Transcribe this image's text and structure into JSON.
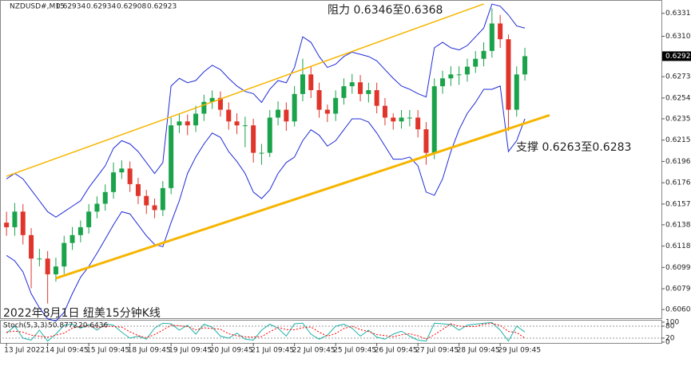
{
  "header": {
    "symbol": "NZDUSD#,M15",
    "ohlc": [
      0.62934,
      0.62934,
      0.62908,
      0.62923
    ]
  },
  "chart_data": [
    {
      "type": "candlestick",
      "annotations": [
        "阻力 0.6346至0.6368",
        "支撑 0.6263至0.6283",
        "2022年8月1日 纽美15分钟K线"
      ],
      "categories": [
        "13 Jul 2022",
        null,
        null,
        null,
        null,
        "14 Jul 09:45",
        null,
        null,
        null,
        null,
        "15 Jul 09:45",
        null,
        null,
        null,
        null,
        "18 Jul 09:45",
        null,
        null,
        null,
        null,
        "19 Jul 09:45",
        null,
        null,
        null,
        null,
        "20 Jul 09:45",
        null,
        null,
        null,
        null,
        "21 Jul 09:45",
        null,
        null,
        null,
        null,
        "22 Jul 09:45",
        null,
        null,
        null,
        null,
        "25 Jul 09:45",
        null,
        null,
        null,
        null,
        "26 Jul 09:45",
        null,
        null,
        null,
        null,
        "27 Jul 09:45",
        null,
        null,
        null,
        null,
        "28 Jul 09:45",
        null,
        null,
        null,
        null,
        "29 Jul 09:45",
        null,
        null,
        null
      ],
      "open": [
        0.614,
        0.61358,
        0.61501,
        0.61286,
        0.61071,
        0.61071,
        0.60927,
        0.60999,
        0.61214,
        0.61286,
        0.61358,
        0.61501,
        0.61573,
        0.6168,
        0.6186,
        0.61895,
        0.61752,
        0.61644,
        0.61558,
        0.61515,
        0.61716,
        0.6229,
        0.62326,
        0.6229,
        0.62397,
        0.62505,
        0.62541,
        0.62433,
        0.62326,
        0.6229,
        0.6229,
        0.62039,
        0.62039,
        0.62361,
        0.62433,
        0.62326,
        0.62577,
        0.62756,
        0.62612,
        0.62433,
        0.62397,
        0.62541,
        0.62648,
        0.62684,
        0.62577,
        0.62612,
        0.62469,
        0.62361,
        0.62326,
        0.62361,
        0.62361,
        0.62254,
        0.62039,
        0.62648,
        0.6272,
        0.62756,
        0.62756,
        0.62827,
        0.62899,
        0.62971,
        0.63222,
        0.63078,
        0.62433,
        0.62756
      ],
      "high": [
        0.615,
        0.6158,
        0.6157,
        0.6135,
        0.6116,
        0.6114,
        0.6108,
        0.6128,
        0.6136,
        0.6142,
        0.6157,
        0.6164,
        0.6175,
        0.6195,
        0.6197,
        0.6196,
        0.6181,
        0.617,
        0.6162,
        0.6178,
        0.6236,
        0.624,
        0.6239,
        0.6247,
        0.6257,
        0.6261,
        0.626,
        0.625,
        0.624,
        0.6237,
        0.6235,
        0.6212,
        0.6243,
        0.6251,
        0.625,
        0.6265,
        0.629,
        0.6283,
        0.6268,
        0.6248,
        0.6261,
        0.6272,
        0.6276,
        0.6275,
        0.6268,
        0.6268,
        0.6254,
        0.624,
        0.6243,
        0.6243,
        0.6243,
        0.6232,
        0.6272,
        0.6279,
        0.6283,
        0.6283,
        0.629,
        0.6297,
        0.6305,
        0.6336,
        0.633,
        0.6312,
        0.6283,
        0.63
      ],
      "low": [
        0.6128,
        0.6128,
        0.612,
        0.608,
        0.61,
        0.6066,
        0.6086,
        0.6093,
        0.6115,
        0.6122,
        0.613,
        0.6144,
        0.6151,
        0.6162,
        0.618,
        0.6168,
        0.6157,
        0.6148,
        0.6144,
        0.6146,
        0.6166,
        0.6222,
        0.622,
        0.6223,
        0.6233,
        0.6244,
        0.6237,
        0.6225,
        0.6221,
        0.6209,
        0.6195,
        0.6193,
        0.62,
        0.6229,
        0.6224,
        0.6228,
        0.6251,
        0.6254,
        0.6236,
        0.6232,
        0.6233,
        0.6248,
        0.6258,
        0.6251,
        0.625,
        0.624,
        0.6229,
        0.6225,
        0.6226,
        0.6228,
        0.6218,
        0.6193,
        0.6198,
        0.6258,
        0.6265,
        0.6266,
        0.6269,
        0.6277,
        0.6283,
        0.6291,
        0.63,
        0.6224,
        0.6237,
        0.627
      ],
      "close": [
        0.61358,
        0.61501,
        0.61286,
        0.61071,
        0.61071,
        0.60927,
        0.60999,
        0.61214,
        0.61286,
        0.61358,
        0.61501,
        0.61573,
        0.6168,
        0.6186,
        0.61895,
        0.61752,
        0.61644,
        0.61558,
        0.61515,
        0.61716,
        0.6229,
        0.62326,
        0.6229,
        0.62397,
        0.62505,
        0.62541,
        0.62433,
        0.62326,
        0.6229,
        0.6229,
        0.62039,
        0.62039,
        0.62361,
        0.62433,
        0.62326,
        0.62577,
        0.62756,
        0.62612,
        0.62433,
        0.62397,
        0.62541,
        0.62648,
        0.62684,
        0.62577,
        0.62612,
        0.62469,
        0.62361,
        0.62326,
        0.62361,
        0.62361,
        0.62254,
        0.62039,
        0.62648,
        0.6272,
        0.62756,
        0.62756,
        0.62827,
        0.62899,
        0.62971,
        0.63222,
        0.63078,
        0.62433,
        0.62756,
        0.62923
      ],
      "up_color": "#1aa34a",
      "down_color": "#e0352b",
      "series": [
        {
          "color": "#1f2bd6",
          "values": [
            0.618,
            0.6185,
            0.618,
            0.617,
            0.616,
            0.615,
            0.6145,
            0.615,
            0.6155,
            0.616,
            0.6172,
            0.6182,
            0.6192,
            0.6208,
            0.6215,
            0.6212,
            0.6205,
            0.6195,
            0.6185,
            0.6195,
            0.6265,
            0.6272,
            0.6268,
            0.627,
            0.6278,
            0.6284,
            0.628,
            0.6272,
            0.6265,
            0.626,
            0.6258,
            0.625,
            0.6262,
            0.627,
            0.6268,
            0.6282,
            0.631,
            0.6305,
            0.6292,
            0.6282,
            0.6285,
            0.6292,
            0.6296,
            0.6294,
            0.6292,
            0.6288,
            0.628,
            0.6272,
            0.6265,
            0.6262,
            0.6258,
            0.6255,
            0.63,
            0.6305,
            0.63,
            0.6298,
            0.6302,
            0.631,
            0.6318,
            0.634,
            0.6338,
            0.633,
            0.632,
            0.6318
          ]
        },
        {
          "color": "#1f2bd6",
          "values": [
            0.611,
            0.6105,
            0.6095,
            0.6075,
            0.6062,
            0.6052,
            0.605,
            0.6058,
            0.6075,
            0.609,
            0.61,
            0.6112,
            0.6125,
            0.6138,
            0.615,
            0.6148,
            0.6138,
            0.6128,
            0.612,
            0.6118,
            0.614,
            0.616,
            0.6185,
            0.62,
            0.6212,
            0.6222,
            0.6218,
            0.6205,
            0.6196,
            0.6185,
            0.6168,
            0.6162,
            0.617,
            0.6185,
            0.6195,
            0.62,
            0.6215,
            0.6225,
            0.622,
            0.621,
            0.6215,
            0.6225,
            0.6235,
            0.6235,
            0.6232,
            0.6222,
            0.621,
            0.6198,
            0.6198,
            0.62,
            0.6192,
            0.6168,
            0.6165,
            0.618,
            0.6205,
            0.6225,
            0.624,
            0.625,
            0.6262,
            0.6262,
            0.6265,
            0.6205,
            0.6215,
            0.6235
          ]
        }
      ],
      "trendlines": [
        {
          "color": "#f7b500",
          "width": 1.5,
          "x": [
            0,
            58
          ],
          "y": [
            0.61824,
            0.63401
          ]
        },
        {
          "color": "#f7b500",
          "width": 3,
          "x": [
            6,
            66
          ],
          "y": [
            0.60891,
            0.62383
          ]
        }
      ],
      "ylim": [
        0.60533,
        0.63415
      ],
      "yticks": [
        0.63315,
        0.63105,
        0.62735,
        {
          "value": 0.6254,
          "label": "0.62540"
        },
        {
          "value": 0.6235,
          "label": "0.62350"
        },
        0.62155,
        0.6196,
        0.61765,
        {
          "value": 0.6157,
          "label": "0.61570"
        },
        {
          "value": 0.6138,
          "label": "0.61380"
        },
        0.61185,
        {
          "value": 0.6099,
          "label": "0.60990"
        },
        0.60795,
        0.60605
      ]
    },
    {
      "type": "line",
      "title": "Stoch(5,3,3)",
      "series": [
        {
          "color": "#20b2aa",
          "dash": false,
          "values": [
            45,
            80,
            20,
            10,
            60,
            5,
            40,
            85,
            90,
            70,
            88,
            60,
            92,
            85,
            50,
            20,
            30,
            15,
            70,
            95,
            92,
            60,
            85,
            40,
            90,
            75,
            30,
            20,
            45,
            15,
            10,
            60,
            90,
            70,
            30,
            92,
            95,
            40,
            15,
            35,
            80,
            90,
            70,
            30,
            60,
            25,
            15,
            40,
            55,
            30,
            10,
            5,
            95,
            92,
            88,
            60,
            85,
            90,
            95,
            98,
            60,
            5,
            80,
            50.8772
          ]
        },
        {
          "color": "#ff0000",
          "dash": true,
          "values": [
            50,
            55,
            50,
            35,
            30,
            25,
            35,
            45,
            70,
            80,
            82,
            72,
            80,
            78,
            75,
            52,
            33,
            22,
            38,
            60,
            85,
            82,
            78,
            62,
            72,
            68,
            65,
            42,
            32,
            27,
            25,
            28,
            52,
            73,
            63,
            62,
            72,
            76,
            50,
            30,
            43,
            68,
            80,
            63,
            53,
            38,
            33,
            27,
            37,
            42,
            32,
            15,
            37,
            64,
            92,
            80,
            78,
            78,
            90,
            94,
            84,
            54,
            48,
            20.6436
          ]
        }
      ],
      "ylim": [
        0,
        100
      ],
      "yticks": [
        0,
        20,
        80,
        100
      ]
    }
  ]
}
